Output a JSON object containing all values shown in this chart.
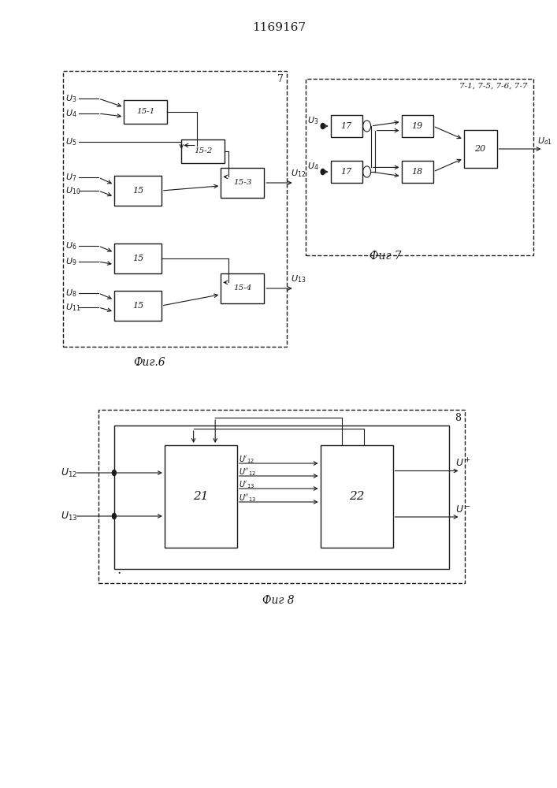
{
  "title": "1169167",
  "fig6_caption": "Фиг.6",
  "fig7_caption": "Фиг 7",
  "fig8_caption": "Фиг 8",
  "fig6_outer_label": "7",
  "fig7_inner_label": "7-1, 7-5, 7-6, 7-7",
  "fig8_outer_label": "8",
  "bg_color": "#ffffff",
  "line_color": "#1a1a1a",
  "text_color": "#1a1a1a"
}
